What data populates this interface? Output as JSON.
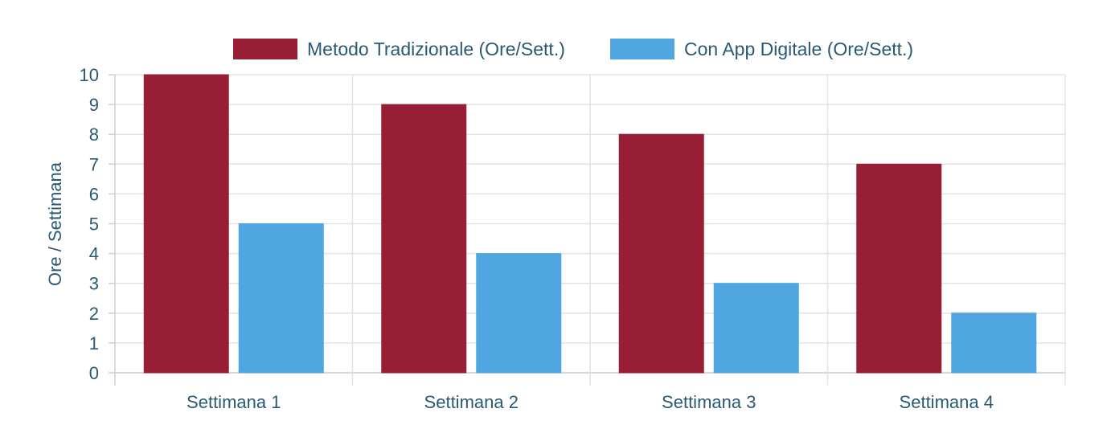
{
  "chart_data": {
    "type": "bar",
    "categories": [
      "Settimana 1",
      "Settimana 2",
      "Settimana 3",
      "Settimana 4"
    ],
    "series": [
      {
        "name": "Metodo Tradizionale (Ore/Sett.)",
        "values": [
          10,
          9,
          8,
          7
        ],
        "color": "#981e36"
      },
      {
        "name": "Con App Digitale (Ore/Sett.)",
        "values": [
          5,
          4,
          3,
          2
        ],
        "color": "#4fa6e0"
      }
    ],
    "ylabel": "Ore / Settimana",
    "xlabel": "",
    "ylim": [
      0,
      10
    ],
    "yticks": [
      "0",
      "1",
      "2",
      "3",
      "4",
      "5",
      "6",
      "7",
      "8",
      "9",
      "10"
    ],
    "grid": true,
    "legend_position": "top-center"
  }
}
